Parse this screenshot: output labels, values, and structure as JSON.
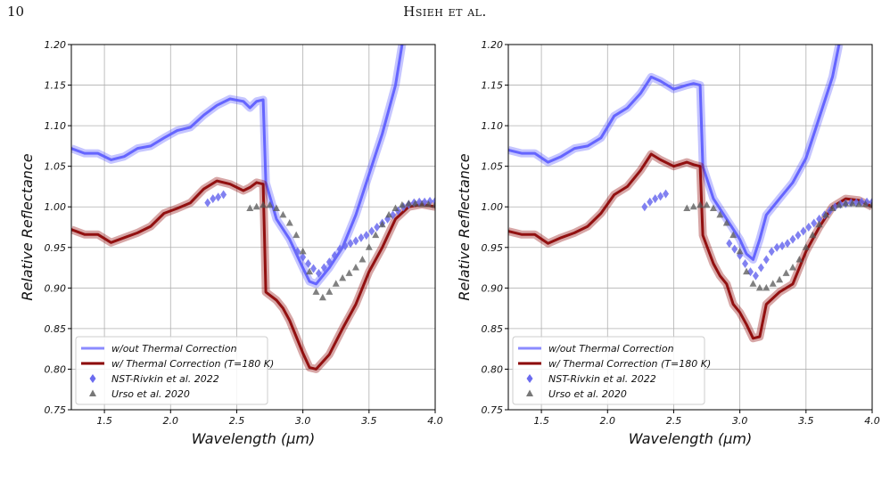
{
  "page": {
    "number": "10",
    "running_head": "Hsieh et al."
  },
  "colors": {
    "blue": "#5a5aff",
    "red": "#8b0000",
    "diamond": "#6b6bef",
    "triangle": "#555555",
    "grid": "#b0b0b0"
  },
  "chart_data": [
    {
      "type": "line",
      "xlabel": "Wavelength (µm)",
      "ylabel": "Relative Reflectance",
      "xlim": [
        1.25,
        4.0
      ],
      "ylim": [
        0.75,
        1.2
      ],
      "xticks": [
        1.5,
        2.0,
        2.5,
        3.0,
        3.5,
        4.0
      ],
      "xtick_labels": [
        "1.5",
        "2.0",
        "2.5",
        "3.0",
        "3.5",
        "4.0"
      ],
      "yticks": [
        0.75,
        0.8,
        0.85,
        0.9,
        0.95,
        1.0,
        1.05,
        1.1,
        1.15,
        1.2
      ],
      "ytick_labels": [
        "0.75",
        "0.80",
        "0.85",
        "0.90",
        "0.95",
        "1.00",
        "1.05",
        "1.10",
        "1.15",
        "1.20"
      ],
      "grid": true,
      "legend_position": "lower-left",
      "legend": [
        {
          "label": "w/out Thermal Correction",
          "kind": "line",
          "color": "#5a5aff"
        },
        {
          "label": "w/ Thermal Correction (T=180 K)",
          "kind": "line",
          "color": "#8b0000"
        },
        {
          "label": "NST-Rivkin et al. 2022",
          "kind": "diamond",
          "color": "#6b6bef"
        },
        {
          "label": "Urso et al. 2020",
          "kind": "triangle",
          "color": "#555555"
        }
      ],
      "series": [
        {
          "name": "w/out Thermal Correction",
          "kind": "line",
          "color": "#5a5aff",
          "x": [
            1.25,
            1.35,
            1.45,
            1.55,
            1.65,
            1.75,
            1.85,
            1.95,
            2.05,
            2.15,
            2.25,
            2.35,
            2.45,
            2.55,
            2.6,
            2.65,
            2.7,
            2.72,
            2.8,
            2.9,
            3.0,
            3.05,
            3.1,
            3.2,
            3.3,
            3.4,
            3.5,
            3.6,
            3.7,
            3.75
          ],
          "y": [
            1.072,
            1.066,
            1.066,
            1.058,
            1.062,
            1.072,
            1.075,
            1.085,
            1.094,
            1.098,
            1.113,
            1.125,
            1.133,
            1.13,
            1.122,
            1.13,
            1.132,
            1.03,
            0.985,
            0.96,
            0.925,
            0.908,
            0.905,
            0.925,
            0.95,
            0.99,
            1.04,
            1.09,
            1.15,
            1.2
          ]
        },
        {
          "name": "w/ Thermal Correction (T=180 K)",
          "kind": "line",
          "color": "#8b0000",
          "x": [
            1.25,
            1.35,
            1.45,
            1.55,
            1.65,
            1.75,
            1.85,
            1.95,
            2.05,
            2.15,
            2.25,
            2.35,
            2.45,
            2.55,
            2.6,
            2.65,
            2.7,
            2.72,
            2.8,
            2.85,
            2.9,
            2.95,
            3.0,
            3.05,
            3.1,
            3.2,
            3.3,
            3.4,
            3.5,
            3.6,
            3.7,
            3.8,
            3.9,
            4.0
          ],
          "y": [
            0.972,
            0.966,
            0.966,
            0.956,
            0.962,
            0.968,
            0.976,
            0.992,
            0.998,
            1.005,
            1.022,
            1.032,
            1.028,
            1.02,
            1.024,
            1.03,
            1.028,
            0.895,
            0.885,
            0.875,
            0.86,
            0.84,
            0.82,
            0.802,
            0.8,
            0.818,
            0.85,
            0.88,
            0.92,
            0.95,
            0.985,
            1.0,
            1.003,
            1.0
          ]
        },
        {
          "name": "NST-Rivkin et al. 2022",
          "kind": "diamond",
          "color": "#6b6bef",
          "x": [
            2.28,
            2.32,
            2.36,
            2.4,
            2.96,
            3.0,
            3.04,
            3.08,
            3.12,
            3.16,
            3.2,
            3.24,
            3.28,
            3.32,
            3.36,
            3.4,
            3.44,
            3.48,
            3.52,
            3.56,
            3.6,
            3.64,
            3.68,
            3.72,
            3.76,
            3.8,
            3.84,
            3.88,
            3.92,
            3.96,
            4.0
          ],
          "y": [
            1.005,
            1.01,
            1.012,
            1.015,
            0.945,
            0.938,
            0.93,
            0.924,
            0.918,
            0.925,
            0.932,
            0.94,
            0.948,
            0.952,
            0.955,
            0.958,
            0.962,
            0.965,
            0.97,
            0.975,
            0.98,
            0.985,
            0.99,
            0.995,
            1.0,
            1.003,
            1.005,
            1.006,
            1.006,
            1.007,
            1.007
          ]
        },
        {
          "name": "Urso et al. 2020",
          "kind": "triangle",
          "color": "#555555",
          "x": [
            2.6,
            2.65,
            2.7,
            2.75,
            2.8,
            2.85,
            2.9,
            2.95,
            3.0,
            3.05,
            3.1,
            3.15,
            3.2,
            3.25,
            3.3,
            3.35,
            3.4,
            3.45,
            3.5,
            3.55,
            3.6,
            3.65,
            3.7,
            3.75,
            3.8,
            3.85,
            3.9,
            3.95,
            4.0
          ],
          "y": [
            0.998,
            1.0,
            1.002,
            1.002,
            0.998,
            0.99,
            0.98,
            0.965,
            0.945,
            0.92,
            0.895,
            0.888,
            0.895,
            0.905,
            0.912,
            0.918,
            0.925,
            0.935,
            0.95,
            0.965,
            0.978,
            0.99,
            0.998,
            1.002,
            1.004,
            1.004,
            1.003,
            1.003,
            1.002
          ]
        }
      ]
    },
    {
      "type": "line",
      "xlabel": "Wavelength (µm)",
      "ylabel": "Relative Reflectance",
      "xlim": [
        1.25,
        4.0
      ],
      "ylim": [
        0.75,
        1.2
      ],
      "xticks": [
        1.5,
        2.0,
        2.5,
        3.0,
        3.5,
        4.0
      ],
      "xtick_labels": [
        "1.5",
        "2.0",
        "2.5",
        "3.0",
        "3.5",
        "4.0"
      ],
      "yticks": [
        0.75,
        0.8,
        0.85,
        0.9,
        0.95,
        1.0,
        1.05,
        1.1,
        1.15,
        1.2
      ],
      "ytick_labels": [
        "0.75",
        "0.80",
        "0.85",
        "0.90",
        "0.95",
        "1.00",
        "1.05",
        "1.10",
        "1.15",
        "1.20"
      ],
      "grid": true,
      "legend_position": "lower-left",
      "legend": [
        {
          "label": "w/out Thermal Correction",
          "kind": "line",
          "color": "#5a5aff"
        },
        {
          "label": "w/ Thermal Correction (T=180 K)",
          "kind": "line",
          "color": "#8b0000"
        },
        {
          "label": "NST-Rivkin et al. 2022",
          "kind": "diamond",
          "color": "#6b6bef"
        },
        {
          "label": "Urso et al. 2020",
          "kind": "triangle",
          "color": "#555555"
        }
      ],
      "series": [
        {
          "name": "w/out Thermal Correction",
          "kind": "line",
          "color": "#5a5aff",
          "x": [
            1.25,
            1.35,
            1.45,
            1.55,
            1.65,
            1.75,
            1.85,
            1.95,
            2.05,
            2.15,
            2.25,
            2.33,
            2.4,
            2.5,
            2.6,
            2.65,
            2.7,
            2.72,
            2.8,
            2.9,
            3.0,
            3.05,
            3.1,
            3.15,
            3.2,
            3.3,
            3.4,
            3.5,
            3.6,
            3.7,
            3.75
          ],
          "y": [
            1.07,
            1.066,
            1.066,
            1.055,
            1.062,
            1.072,
            1.075,
            1.085,
            1.112,
            1.122,
            1.14,
            1.16,
            1.155,
            1.145,
            1.15,
            1.152,
            1.15,
            1.05,
            1.01,
            0.985,
            0.96,
            0.942,
            0.935,
            0.96,
            0.99,
            1.01,
            1.03,
            1.06,
            1.11,
            1.16,
            1.2
          ]
        },
        {
          "name": "w/ Thermal Correction (T=180 K)",
          "kind": "line",
          "color": "#8b0000",
          "x": [
            1.25,
            1.35,
            1.45,
            1.55,
            1.65,
            1.75,
            1.85,
            1.95,
            2.05,
            2.15,
            2.25,
            2.33,
            2.4,
            2.5,
            2.6,
            2.65,
            2.7,
            2.72,
            2.8,
            2.85,
            2.9,
            2.95,
            3.0,
            3.05,
            3.1,
            3.15,
            3.2,
            3.3,
            3.4,
            3.5,
            3.6,
            3.7,
            3.8,
            3.9,
            4.0
          ],
          "y": [
            0.97,
            0.966,
            0.966,
            0.955,
            0.962,
            0.968,
            0.976,
            0.992,
            1.015,
            1.025,
            1.045,
            1.065,
            1.058,
            1.05,
            1.055,
            1.052,
            1.05,
            0.965,
            0.93,
            0.915,
            0.905,
            0.88,
            0.87,
            0.855,
            0.838,
            0.84,
            0.88,
            0.895,
            0.905,
            0.945,
            0.975,
            1.0,
            1.01,
            1.008,
            1.0
          ]
        },
        {
          "name": "NST-Rivkin et al. 2022",
          "kind": "diamond",
          "color": "#6b6bef",
          "x": [
            2.28,
            2.32,
            2.36,
            2.4,
            2.44,
            2.92,
            2.96,
            3.0,
            3.04,
            3.08,
            3.12,
            3.16,
            3.2,
            3.24,
            3.28,
            3.32,
            3.36,
            3.4,
            3.44,
            3.48,
            3.52,
            3.56,
            3.6,
            3.64,
            3.68,
            3.72,
            3.76,
            3.8,
            3.84,
            3.88,
            3.92,
            3.96,
            4.0
          ],
          "y": [
            1.0,
            1.006,
            1.01,
            1.013,
            1.016,
            0.955,
            0.948,
            0.94,
            0.93,
            0.92,
            0.915,
            0.925,
            0.935,
            0.945,
            0.95,
            0.952,
            0.955,
            0.96,
            0.965,
            0.97,
            0.975,
            0.98,
            0.985,
            0.99,
            0.995,
            1.0,
            1.003,
            1.004,
            1.005,
            1.005,
            1.006,
            1.006,
            1.006
          ]
        },
        {
          "name": "Urso et al. 2020",
          "kind": "triangle",
          "color": "#555555",
          "x": [
            2.6,
            2.65,
            2.7,
            2.75,
            2.8,
            2.85,
            2.9,
            2.95,
            3.0,
            3.05,
            3.1,
            3.15,
            3.2,
            3.25,
            3.3,
            3.35,
            3.4,
            3.45,
            3.5,
            3.55,
            3.6,
            3.65,
            3.7,
            3.75,
            3.8,
            3.85,
            3.9,
            3.95,
            4.0
          ],
          "y": [
            0.998,
            1.0,
            1.002,
            1.002,
            0.998,
            0.99,
            0.98,
            0.965,
            0.945,
            0.92,
            0.905,
            0.9,
            0.9,
            0.905,
            0.91,
            0.918,
            0.925,
            0.935,
            0.95,
            0.965,
            0.978,
            0.99,
            0.998,
            1.002,
            1.004,
            1.004,
            1.003,
            1.003,
            1.002
          ]
        }
      ]
    }
  ]
}
